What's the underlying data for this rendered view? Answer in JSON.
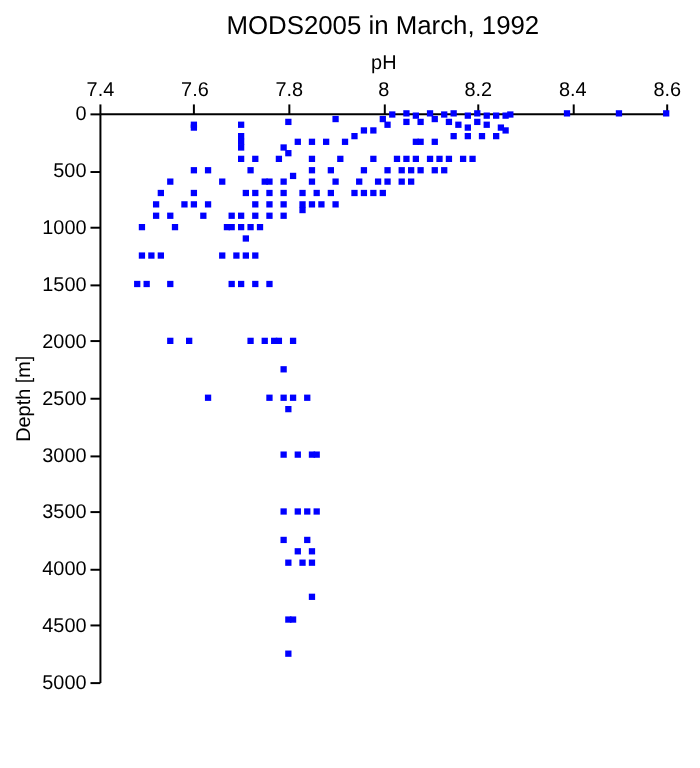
{
  "chart_data": {
    "type": "scatter",
    "title": "MODS2005 in March, 1992",
    "xlabel": "pH",
    "ylabel": "Depth [m]",
    "xlim": [
      7.4,
      8.6
    ],
    "xticks": [
      7.4,
      7.6,
      7.8,
      8,
      8.2,
      8.4,
      8.6
    ],
    "ylim": [
      5000,
      0
    ],
    "yticks": [
      0,
      500,
      1000,
      1500,
      2000,
      2500,
      3000,
      3500,
      4000,
      4500,
      5000
    ],
    "grid": false,
    "marker": "square",
    "series": [
      {
        "color": "#0000ff",
        "x": [
          8.39,
          8.5,
          8.6,
          8.05,
          8.1,
          8.15,
          8.2,
          8.02,
          8.13,
          8.27,
          8.07,
          8.18,
          8.22,
          8.24,
          8.26,
          8.11,
          7.9,
          8.0,
          8.2,
          8.14,
          8.08,
          8.05,
          7.8,
          8.22,
          8.16,
          8.01,
          7.6,
          7.7,
          8.25,
          8.18,
          7.6,
          7.98,
          7.96,
          8.26,
          7.94,
          7.7,
          8.15,
          8.18,
          8.21,
          8.24,
          7.92,
          7.88,
          7.85,
          7.82,
          7.7,
          8.07,
          8.08,
          8.11,
          7.79,
          7.7,
          7.8,
          7.7,
          7.73,
          7.78,
          7.85,
          7.91,
          7.98,
          8.03,
          8.05,
          8.07,
          8.1,
          8.12,
          8.14,
          8.17,
          8.19,
          8.01,
          8.04,
          8.06,
          8.08,
          8.11,
          8.13,
          7.96,
          7.89,
          7.85,
          7.72,
          7.63,
          7.6,
          7.81,
          7.76,
          7.66,
          7.55,
          7.99,
          8.01,
          8.04,
          8.06,
          7.95,
          7.9,
          7.85,
          7.79,
          7.75,
          7.53,
          7.6,
          7.79,
          7.83,
          7.86,
          7.89,
          7.94,
          7.96,
          8.0,
          7.98,
          7.76,
          7.73,
          7.71,
          7.6,
          7.52,
          7.58,
          7.63,
          7.73,
          7.76,
          7.79,
          7.83,
          7.85,
          7.87,
          7.9,
          7.83,
          7.52,
          7.55,
          7.62,
          7.68,
          7.7,
          7.73,
          7.76,
          7.79,
          7.49,
          7.56,
          7.67,
          7.7,
          7.72,
          7.74,
          7.68,
          7.71,
          7.49,
          7.51,
          7.53,
          7.66,
          7.69,
          7.71,
          7.73,
          7.48,
          7.5,
          7.55,
          7.68,
          7.7,
          7.73,
          7.76,
          7.55,
          7.59,
          7.72,
          7.75,
          7.77,
          7.78,
          7.81,
          7.79,
          7.63,
          7.76,
          7.79,
          7.81,
          7.84,
          7.8,
          7.79,
          7.82,
          7.85,
          7.86,
          7.79,
          7.82,
          7.86,
          7.84,
          7.79,
          7.84,
          7.82,
          7.85,
          7.8,
          7.83,
          7.85,
          7.85,
          7.8,
          7.81,
          7.8
        ],
        "values": [
          0,
          0,
          0,
          0,
          0,
          0,
          0,
          10,
          10,
          10,
          20,
          20,
          20,
          20,
          20,
          50,
          50,
          50,
          75,
          75,
          75,
          75,
          75,
          100,
          100,
          100,
          100,
          100,
          125,
          125,
          125,
          150,
          150,
          150,
          200,
          200,
          200,
          200,
          200,
          200,
          250,
          250,
          250,
          250,
          250,
          250,
          250,
          250,
          300,
          300,
          350,
          400,
          400,
          400,
          400,
          400,
          400,
          400,
          400,
          400,
          400,
          400,
          400,
          400,
          400,
          500,
          500,
          500,
          500,
          500,
          500,
          500,
          500,
          500,
          500,
          500,
          500,
          550,
          600,
          600,
          600,
          600,
          600,
          600,
          600,
          600,
          600,
          600,
          600,
          600,
          700,
          700,
          700,
          700,
          700,
          700,
          700,
          700,
          700,
          700,
          700,
          700,
          700,
          800,
          800,
          800,
          800,
          800,
          800,
          800,
          800,
          800,
          800,
          800,
          850,
          900,
          900,
          900,
          900,
          900,
          900,
          900,
          900,
          1000,
          1000,
          1000,
          1000,
          1000,
          1000,
          1000,
          1100,
          1250,
          1250,
          1250,
          1250,
          1250,
          1250,
          1250,
          1500,
          1500,
          1500,
          1500,
          1500,
          1500,
          1500,
          2000,
          2000,
          2000,
          2000,
          2000,
          2000,
          2000,
          2250,
          2500,
          2500,
          2500,
          2500,
          2500,
          2600,
          3000,
          3000,
          3000,
          3000,
          3500,
          3500,
          3500,
          3500,
          3750,
          3750,
          3850,
          3850,
          3950,
          3950,
          3950,
          4250,
          4450,
          4450,
          4750
        ]
      }
    ]
  }
}
